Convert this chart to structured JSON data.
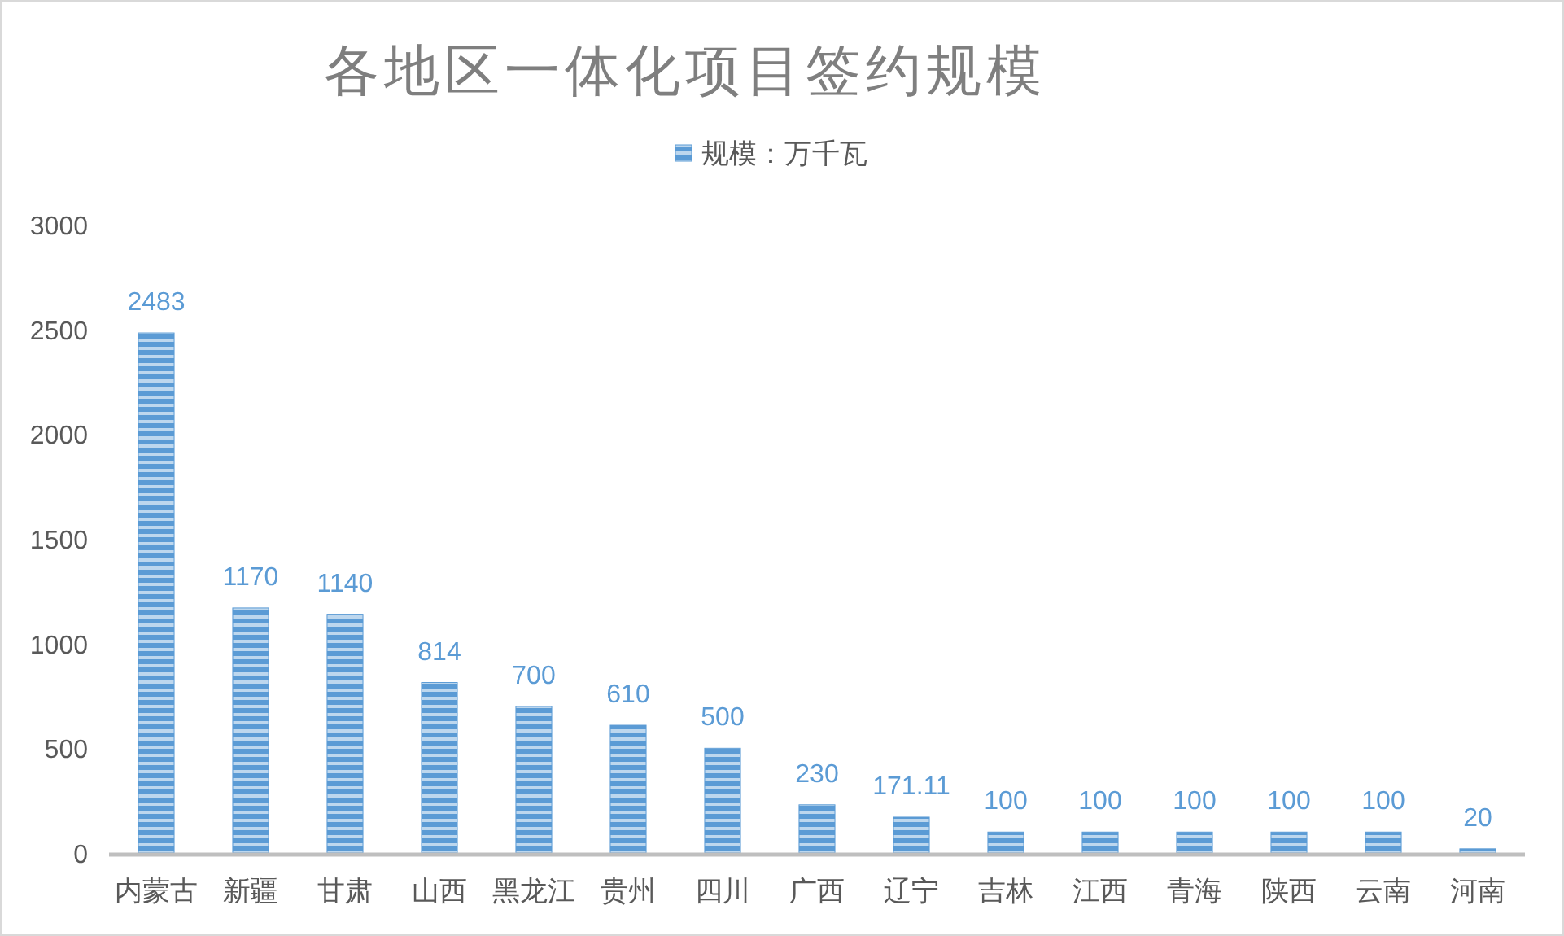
{
  "chart_data": {
    "type": "bar",
    "title": "各地区一体化项目签约规模",
    "categories": [
      "内蒙古",
      "新疆",
      "甘肃",
      "山西",
      "黑龙江",
      "贵州",
      "四川",
      "广西",
      "辽宁",
      "吉林",
      "江西",
      "青海",
      "陕西",
      "云南",
      "河南"
    ],
    "series": [
      {
        "name": "规模：万千瓦",
        "color": "#5b9bd5",
        "values": [
          2483,
          1170,
          1140,
          814,
          700,
          610,
          500,
          230,
          171.11,
          100,
          100,
          100,
          100,
          100,
          20
        ]
      }
    ],
    "ylim": [
      0,
      3000
    ],
    "yticks": [
      0,
      500,
      1000,
      1500,
      2000,
      2500,
      3000
    ],
    "grid": false,
    "legend": "top",
    "data_labels": true
  }
}
